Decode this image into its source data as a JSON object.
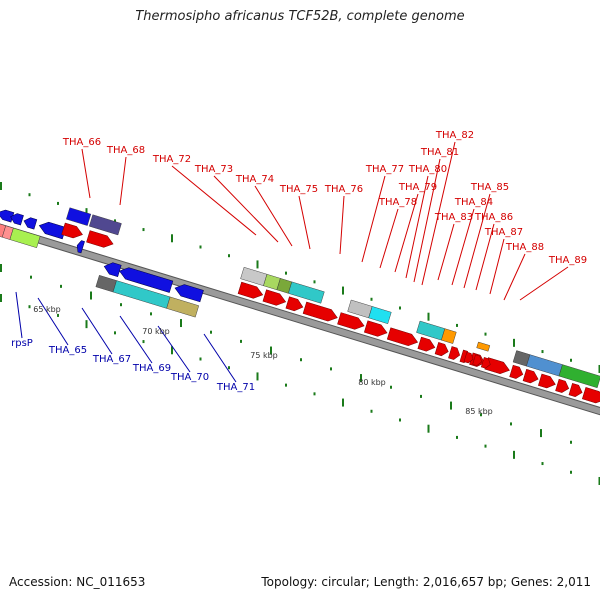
{
  "title": "Thermosipho africanus TCF52B, complete genome",
  "footer": {
    "accession": "Accession: NC_011653",
    "topology": "Topology: circular; Length: 2,016,657 bp; Genes: 2,011"
  },
  "kbp_labels": [
    "65 kbp",
    "70 kbp",
    "75 kbp",
    "80 kbp",
    "85 kbp"
  ],
  "genes_upper": [
    "THA_66",
    "THA_68",
    "THA_72",
    "THA_73",
    "THA_74",
    "THA_75",
    "THA_76",
    "THA_77",
    "THA_78",
    "THA_79",
    "THA_80",
    "THA_81",
    "THA_82",
    "THA_83",
    "THA_84",
    "THA_85",
    "THA_86",
    "THA_87",
    "THA_88",
    "THA_89"
  ],
  "genes_lower": [
    "rpsP",
    "THA_65",
    "THA_67",
    "THA_69",
    "THA_70",
    "THA_71"
  ],
  "colors": {
    "forward": "#e60000",
    "reverse": "#1010e0",
    "label_upper": "#d40000",
    "label_lower": "#0000aa",
    "backbone": "#888888",
    "tick": "#1a7a1a"
  }
}
